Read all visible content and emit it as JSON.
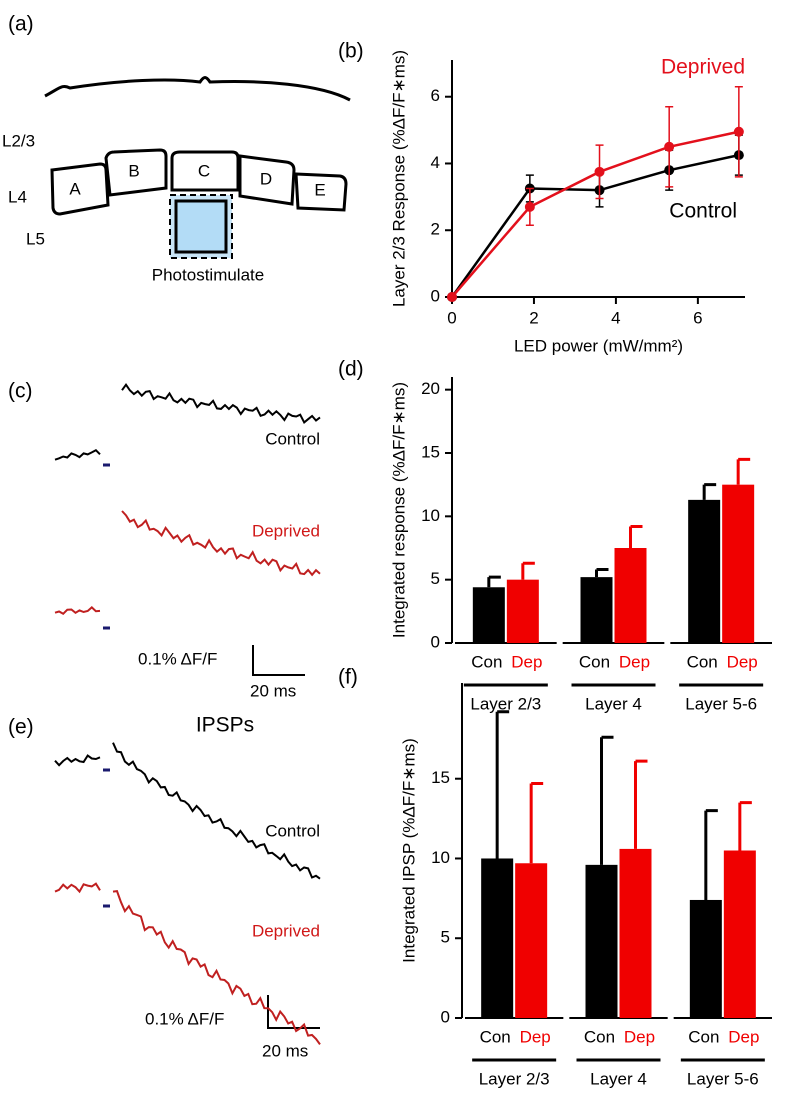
{
  "panel_a": {
    "label": "(a)",
    "layers": [
      "L2/3",
      "L4",
      "L5"
    ],
    "barrels": [
      "A",
      "B",
      "C",
      "D",
      "E"
    ],
    "stimulus": "Photostimulate"
  },
  "panel_c": {
    "label": "(c)",
    "control": "Control",
    "deprived": "Deprived",
    "scale_y": "0.1% ΔF/F",
    "scale_x": "20 ms"
  },
  "panel_e": {
    "label": "(e)",
    "title": "IPSPs",
    "control": "Control",
    "deprived": "Deprived",
    "scale_y": "0.1% ΔF/F",
    "scale_x": "20 ms"
  },
  "chart_data": [
    {
      "type": "line",
      "label": "(b)",
      "x_label": "LED power (mW/mm²)",
      "y_label": "Layer 2/3 Response (%ΔF/F∗ms)",
      "x": [
        0,
        1.9,
        3.6,
        5.3,
        7.0
      ],
      "series": [
        {
          "name": "Control",
          "color": "#000000",
          "values": [
            0,
            3.25,
            3.2,
            3.8,
            4.25
          ],
          "errors": [
            null,
            0.4,
            0.5,
            0.6,
            0.6
          ]
        },
        {
          "name": "Deprived",
          "color": "#e3101c",
          "values": [
            0,
            2.7,
            3.75,
            4.5,
            4.95
          ],
          "errors": [
            null,
            0.55,
            0.8,
            1.2,
            1.35
          ]
        }
      ],
      "xlim": [
        0,
        7.15
      ],
      "xticks": [
        0,
        2,
        4,
        6
      ],
      "ylim": [
        0,
        7.1
      ],
      "yticks": [
        0,
        2,
        4,
        6
      ]
    },
    {
      "type": "bar",
      "label": "(d)",
      "y_label": "Integrated response (%ΔF/F∗ms)",
      "categories": [
        "Layer 2/3",
        "Layer 4",
        "Layer 5-6"
      ],
      "series": [
        {
          "name": "Con",
          "color": "#000000",
          "values": [
            4.4,
            5.2,
            11.3
          ],
          "errors": [
            0.8,
            0.6,
            1.2
          ]
        },
        {
          "name": "Dep",
          "color": "#f00000",
          "values": [
            5.0,
            7.5,
            12.5
          ],
          "errors": [
            1.3,
            1.7,
            2.0
          ]
        }
      ],
      "ylim": [
        0,
        21
      ],
      "yticks": [
        0,
        5,
        10,
        15,
        20
      ]
    },
    {
      "type": "bar",
      "label": "(f)",
      "y_label": "Integrated IPSP (%ΔF/F∗ms)",
      "categories": [
        "Layer 2/3",
        "Layer 4",
        "Layer 5-6"
      ],
      "series": [
        {
          "name": "Con",
          "color": "#000000",
          "values": [
            10.0,
            9.6,
            7.4
          ],
          "errors": [
            9.2,
            8.0,
            5.6
          ]
        },
        {
          "name": "Dep",
          "color": "#f00000",
          "values": [
            9.7,
            10.6,
            10.5
          ],
          "errors": [
            5.0,
            5.5,
            3.0
          ]
        }
      ],
      "ylim": [
        0,
        21
      ],
      "yticks": [
        0,
        5,
        10,
        15
      ]
    }
  ]
}
